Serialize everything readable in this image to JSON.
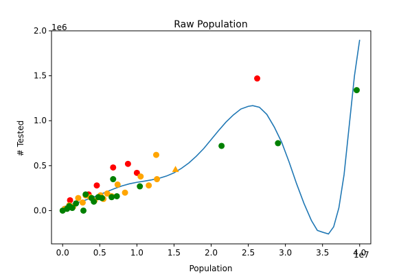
{
  "chart_data": {
    "type": "scatter",
    "title": "Raw Population",
    "xlabel": "Population",
    "ylabel": "# Tested",
    "x_offset_label": "1e7",
    "y_offset_label": "1e6",
    "xlim": [
      -1500000,
      41500000
    ],
    "ylim": [
      -370000,
      2000000
    ],
    "xticks": [
      0,
      5000000,
      10000000,
      15000000,
      20000000,
      25000000,
      30000000,
      35000000,
      40000000
    ],
    "xtick_labels": [
      "0.0",
      "0.5",
      "1.0",
      "1.5",
      "2.0",
      "2.5",
      "3.0",
      "3.5",
      "4.0"
    ],
    "yticks": [
      0,
      500000,
      1000000,
      1500000,
      2000000
    ],
    "ytick_labels": [
      "0.0",
      "0.5",
      "1.0",
      "1.5",
      "2.0"
    ],
    "grid": false,
    "series": [
      {
        "color": "#ff0000",
        "marker": "circle",
        "points": [
          [
            1000000,
            115000
          ],
          [
            3500000,
            180000
          ],
          [
            4600000,
            280000
          ],
          [
            6800000,
            480000
          ],
          [
            8800000,
            520000
          ],
          [
            10000000,
            420000
          ],
          [
            26200000,
            1470000
          ]
        ]
      },
      {
        "color": "#ffa500",
        "marker": "circle",
        "points": [
          [
            300000,
            20000
          ],
          [
            900000,
            60000
          ],
          [
            1400000,
            40000
          ],
          [
            2100000,
            140000
          ],
          [
            2700000,
            90000
          ],
          [
            3100000,
            170000
          ],
          [
            3700000,
            150000
          ],
          [
            4300000,
            110000
          ],
          [
            5100000,
            170000
          ],
          [
            5500000,
            130000
          ],
          [
            6000000,
            190000
          ],
          [
            6600000,
            160000
          ],
          [
            7400000,
            290000
          ],
          [
            8400000,
            200000
          ],
          [
            10500000,
            380000
          ],
          [
            11600000,
            280000
          ],
          [
            12700000,
            350000
          ],
          [
            12600000,
            620000
          ]
        ]
      },
      {
        "color": "#ffa500",
        "marker": "triangle",
        "points": [
          [
            15200000,
            460000
          ]
        ]
      },
      {
        "color": "#008000",
        "marker": "circle",
        "points": [
          [
            0,
            0
          ],
          [
            600000,
            20000
          ],
          [
            900000,
            50000
          ],
          [
            1300000,
            30000
          ],
          [
            1800000,
            80000
          ],
          [
            2800000,
            0
          ],
          [
            3100000,
            180000
          ],
          [
            3900000,
            140000
          ],
          [
            4200000,
            100000
          ],
          [
            4800000,
            150000
          ],
          [
            5300000,
            140000
          ],
          [
            6600000,
            150000
          ],
          [
            6800000,
            350000
          ],
          [
            7300000,
            160000
          ],
          [
            10400000,
            270000
          ],
          [
            21400000,
            720000
          ],
          [
            29000000,
            750000
          ],
          [
            39600000,
            1340000
          ]
        ]
      }
    ],
    "fit_line": {
      "color": "#1f77b4",
      "points": [
        [
          0,
          40000
        ],
        [
          1000000,
          65000
        ],
        [
          2000000,
          88000
        ],
        [
          3000000,
          115000
        ],
        [
          4000000,
          145000
        ],
        [
          5000000,
          178000
        ],
        [
          6000000,
          212000
        ],
        [
          7000000,
          245000
        ],
        [
          8000000,
          275000
        ],
        [
          9000000,
          298000
        ],
        [
          10000000,
          315000
        ],
        [
          11000000,
          328000
        ],
        [
          12000000,
          342000
        ],
        [
          13000000,
          360000
        ],
        [
          14000000,
          385000
        ],
        [
          15000000,
          420000
        ],
        [
          16000000,
          470000
        ],
        [
          17000000,
          530000
        ],
        [
          18000000,
          605000
        ],
        [
          19000000,
          690000
        ],
        [
          20000000,
          790000
        ],
        [
          21000000,
          890000
        ],
        [
          22000000,
          985000
        ],
        [
          23000000,
          1065000
        ],
        [
          24000000,
          1130000
        ],
        [
          25000000,
          1160000
        ],
        [
          25600000,
          1168000
        ],
        [
          26500000,
          1150000
        ],
        [
          27500000,
          1070000
        ],
        [
          28500000,
          930000
        ],
        [
          29500000,
          760000
        ],
        [
          30500000,
          540000
        ],
        [
          31500000,
          300000
        ],
        [
          32500000,
          80000
        ],
        [
          33500000,
          -110000
        ],
        [
          34300000,
          -220000
        ],
        [
          35000000,
          -240000
        ],
        [
          35800000,
          -260000
        ],
        [
          36500000,
          -180000
        ],
        [
          37200000,
          30000
        ],
        [
          37900000,
          400000
        ],
        [
          38600000,
          950000
        ],
        [
          39300000,
          1500000
        ],
        [
          40000000,
          1900000
        ]
      ]
    }
  }
}
